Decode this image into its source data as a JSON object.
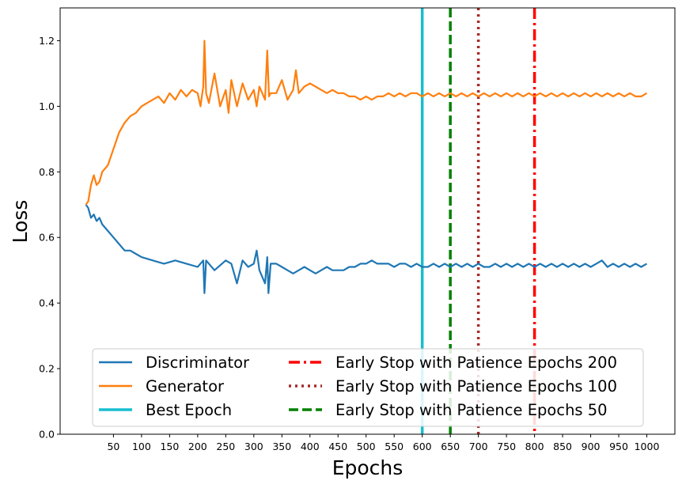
{
  "chart_data": {
    "type": "line",
    "title": "",
    "xlabel": "Epochs",
    "ylabel": "Loss",
    "xlim": [
      -45,
      1050
    ],
    "ylim": [
      0,
      1.3
    ],
    "xticks": [
      50,
      100,
      150,
      200,
      250,
      300,
      350,
      400,
      450,
      500,
      550,
      600,
      650,
      700,
      750,
      800,
      850,
      900,
      950,
      1000
    ],
    "yticks": [
      0.0,
      0.2,
      0.4,
      0.6,
      0.8,
      1.0,
      1.2
    ],
    "grid": false,
    "legend_position": "bottom",
    "series": [
      {
        "name": "Discriminator",
        "color": "#1f77b4",
        "x": [
          1,
          5,
          10,
          15,
          20,
          25,
          30,
          40,
          50,
          60,
          70,
          80,
          90,
          100,
          120,
          140,
          160,
          180,
          200,
          210,
          212,
          215,
          230,
          250,
          260,
          270,
          280,
          290,
          300,
          305,
          310,
          320,
          324,
          326,
          330,
          340,
          350,
          360,
          370,
          380,
          390,
          400,
          410,
          420,
          430,
          440,
          450,
          460,
          470,
          480,
          490,
          500,
          510,
          520,
          530,
          540,
          550,
          560,
          570,
          580,
          590,
          600,
          610,
          620,
          630,
          640,
          650,
          660,
          670,
          680,
          690,
          700,
          710,
          720,
          730,
          740,
          750,
          760,
          770,
          780,
          790,
          800,
          810,
          820,
          830,
          840,
          850,
          860,
          870,
          880,
          890,
          900,
          910,
          920,
          930,
          940,
          950,
          960,
          970,
          980,
          990,
          1000
        ],
        "values": [
          0.7,
          0.69,
          0.66,
          0.67,
          0.65,
          0.66,
          0.64,
          0.62,
          0.6,
          0.58,
          0.56,
          0.56,
          0.55,
          0.54,
          0.53,
          0.52,
          0.53,
          0.52,
          0.51,
          0.53,
          0.43,
          0.53,
          0.5,
          0.53,
          0.52,
          0.46,
          0.53,
          0.51,
          0.52,
          0.56,
          0.5,
          0.46,
          0.54,
          0.43,
          0.52,
          0.52,
          0.51,
          0.5,
          0.49,
          0.5,
          0.51,
          0.5,
          0.49,
          0.5,
          0.51,
          0.5,
          0.5,
          0.5,
          0.51,
          0.51,
          0.52,
          0.52,
          0.53,
          0.52,
          0.52,
          0.52,
          0.51,
          0.52,
          0.52,
          0.51,
          0.52,
          0.51,
          0.51,
          0.52,
          0.51,
          0.52,
          0.51,
          0.52,
          0.51,
          0.52,
          0.51,
          0.52,
          0.51,
          0.51,
          0.52,
          0.51,
          0.52,
          0.51,
          0.52,
          0.51,
          0.52,
          0.51,
          0.52,
          0.51,
          0.52,
          0.51,
          0.52,
          0.51,
          0.52,
          0.51,
          0.52,
          0.51,
          0.52,
          0.53,
          0.51,
          0.52,
          0.51,
          0.52,
          0.51,
          0.52,
          0.51,
          0.52
        ]
      },
      {
        "name": "Generator",
        "color": "#ff7f0e",
        "x": [
          1,
          5,
          10,
          15,
          20,
          25,
          30,
          40,
          50,
          60,
          70,
          80,
          90,
          100,
          110,
          120,
          130,
          140,
          150,
          160,
          170,
          180,
          190,
          200,
          205,
          210,
          212,
          215,
          220,
          230,
          240,
          250,
          255,
          260,
          270,
          280,
          290,
          300,
          305,
          310,
          320,
          324,
          327,
          330,
          340,
          350,
          360,
          370,
          375,
          380,
          390,
          400,
          410,
          420,
          430,
          440,
          450,
          460,
          470,
          480,
          490,
          500,
          510,
          520,
          530,
          540,
          550,
          560,
          570,
          580,
          590,
          600,
          610,
          620,
          630,
          640,
          650,
          660,
          670,
          680,
          690,
          700,
          710,
          720,
          730,
          740,
          750,
          760,
          770,
          780,
          790,
          800,
          810,
          820,
          830,
          840,
          850,
          860,
          870,
          880,
          890,
          900,
          910,
          920,
          930,
          940,
          950,
          960,
          970,
          980,
          990,
          1000
        ],
        "values": [
          0.7,
          0.71,
          0.76,
          0.79,
          0.76,
          0.77,
          0.8,
          0.82,
          0.87,
          0.92,
          0.95,
          0.97,
          0.98,
          1.0,
          1.01,
          1.02,
          1.03,
          1.01,
          1.04,
          1.02,
          1.05,
          1.03,
          1.05,
          1.04,
          1.0,
          1.06,
          1.2,
          1.04,
          1.01,
          1.1,
          1.0,
          1.05,
          0.98,
          1.08,
          1.0,
          1.07,
          1.02,
          1.05,
          1.0,
          1.06,
          1.02,
          1.17,
          1.03,
          1.04,
          1.04,
          1.08,
          1.02,
          1.05,
          1.11,
          1.04,
          1.06,
          1.07,
          1.06,
          1.05,
          1.04,
          1.05,
          1.04,
          1.04,
          1.03,
          1.03,
          1.02,
          1.03,
          1.02,
          1.03,
          1.03,
          1.04,
          1.03,
          1.04,
          1.03,
          1.04,
          1.04,
          1.03,
          1.04,
          1.03,
          1.04,
          1.03,
          1.04,
          1.03,
          1.04,
          1.03,
          1.04,
          1.03,
          1.04,
          1.03,
          1.04,
          1.03,
          1.04,
          1.03,
          1.04,
          1.03,
          1.04,
          1.03,
          1.04,
          1.03,
          1.04,
          1.03,
          1.04,
          1.03,
          1.04,
          1.03,
          1.04,
          1.03,
          1.04,
          1.03,
          1.04,
          1.03,
          1.04,
          1.03,
          1.04,
          1.03,
          1.03,
          1.04
        ]
      }
    ],
    "vlines": [
      {
        "name": "Best Epoch",
        "x": 600,
        "color": "#17becf",
        "style": "solid"
      },
      {
        "name": "Early Stop with Patience Epochs 50",
        "x": 650,
        "color": "#008000",
        "style": "dashed"
      },
      {
        "name": "Early Stop with Patience Epochs 100",
        "x": 700,
        "color": "#a52a2a",
        "style": "dotted"
      },
      {
        "name": "Early Stop with Patience Epochs 200",
        "x": 800,
        "color": "#ff0000",
        "style": "dashdot"
      }
    ],
    "legend": {
      "left_column": [
        "Discriminator",
        "Generator",
        "Best Epoch"
      ],
      "right_column": [
        "Early Stop with Patience Epochs 200",
        "Early Stop with Patience Epochs 100",
        "Early Stop with Patience Epochs 50"
      ]
    }
  }
}
